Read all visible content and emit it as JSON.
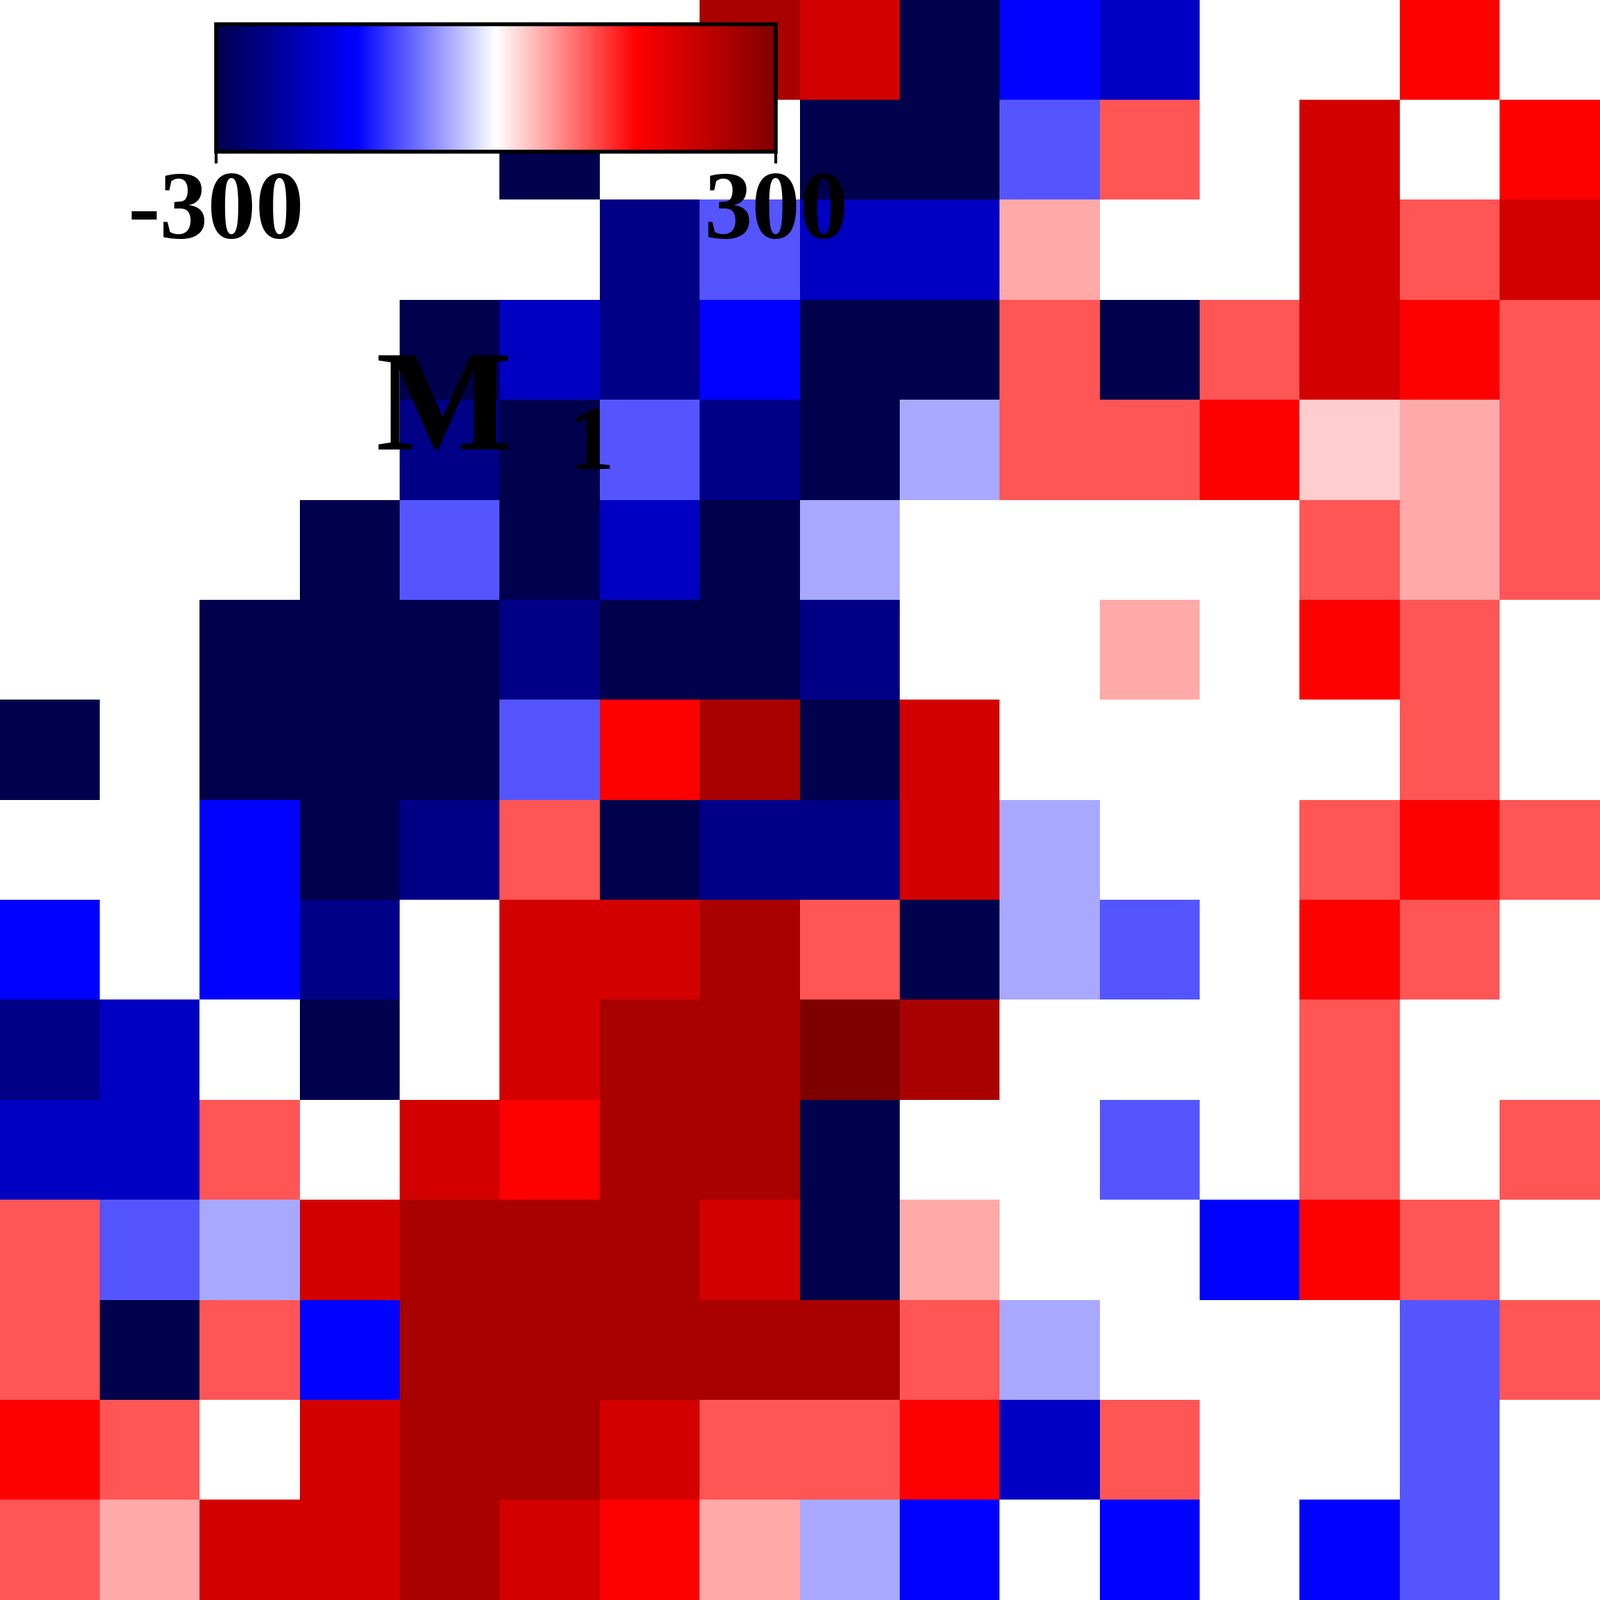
{
  "chart_data": {
    "type": "heatmap",
    "tick_labels": false,
    "colorbar_label": "M1",
    "colorbar_range": [
      -300,
      300
    ],
    "colorbar_ticks": [
      -300,
      300
    ],
    "cells": [
      [
        null,
        null,
        null,
        null,
        null,
        null,
        null,
        250,
        200,
        -300,
        -150,
        -200,
        null,
        null,
        150,
        null
      ],
      [
        null,
        null,
        null,
        null,
        null,
        -300,
        null,
        null,
        -300,
        -300,
        -100,
        100,
        null,
        200,
        null,
        150
      ],
      [
        null,
        null,
        null,
        null,
        null,
        null,
        -250,
        -100,
        -200,
        -200,
        50,
        null,
        null,
        200,
        100,
        200
      ],
      [
        null,
        null,
        null,
        null,
        -300,
        -200,
        -250,
        -150,
        -300,
        -300,
        100,
        -300,
        100,
        200,
        150,
        100
      ],
      [
        null,
        null,
        null,
        null,
        -250,
        -300,
        -100,
        -250,
        -300,
        -50,
        100,
        100,
        150,
        30,
        50,
        100
      ],
      [
        null,
        null,
        null,
        -300,
        -100,
        -300,
        -200,
        -300,
        -50,
        null,
        null,
        null,
        null,
        100,
        50,
        100
      ],
      [
        null,
        null,
        -300,
        -300,
        -300,
        -250,
        -300,
        -300,
        -250,
        null,
        null,
        50,
        null,
        150,
        100,
        null
      ],
      [
        -300,
        null,
        -300,
        -300,
        -300,
        -100,
        150,
        250,
        -300,
        200,
        null,
        null,
        null,
        null,
        100,
        null
      ],
      [
        null,
        null,
        -150,
        -300,
        -250,
        100,
        -300,
        -250,
        -250,
        200,
        -50,
        null,
        null,
        100,
        150,
        100
      ],
      [
        -150,
        null,
        -150,
        -250,
        null,
        200,
        200,
        250,
        100,
        -300,
        -50,
        -100,
        null,
        150,
        100,
        null
      ],
      [
        -250,
        -200,
        null,
        -300,
        null,
        200,
        250,
        250,
        300,
        250,
        null,
        null,
        null,
        100,
        null,
        null
      ],
      [
        -200,
        -200,
        100,
        null,
        200,
        150,
        250,
        250,
        -300,
        null,
        null,
        -100,
        null,
        100,
        null,
        100
      ],
      [
        100,
        -100,
        -50,
        200,
        250,
        250,
        250,
        200,
        -300,
        50,
        null,
        null,
        -150,
        150,
        100,
        null
      ],
      [
        100,
        -300,
        100,
        -150,
        250,
        250,
        250,
        250,
        250,
        100,
        -50,
        null,
        null,
        null,
        -100,
        100
      ],
      [
        150,
        100,
        null,
        200,
        250,
        250,
        200,
        100,
        100,
        150,
        -200,
        100,
        null,
        null,
        -100,
        null
      ],
      [
        100,
        50,
        200,
        200,
        250,
        200,
        150,
        50,
        -50,
        -150,
        null,
        -150,
        null,
        -150,
        -100,
        null
      ]
    ]
  }
}
